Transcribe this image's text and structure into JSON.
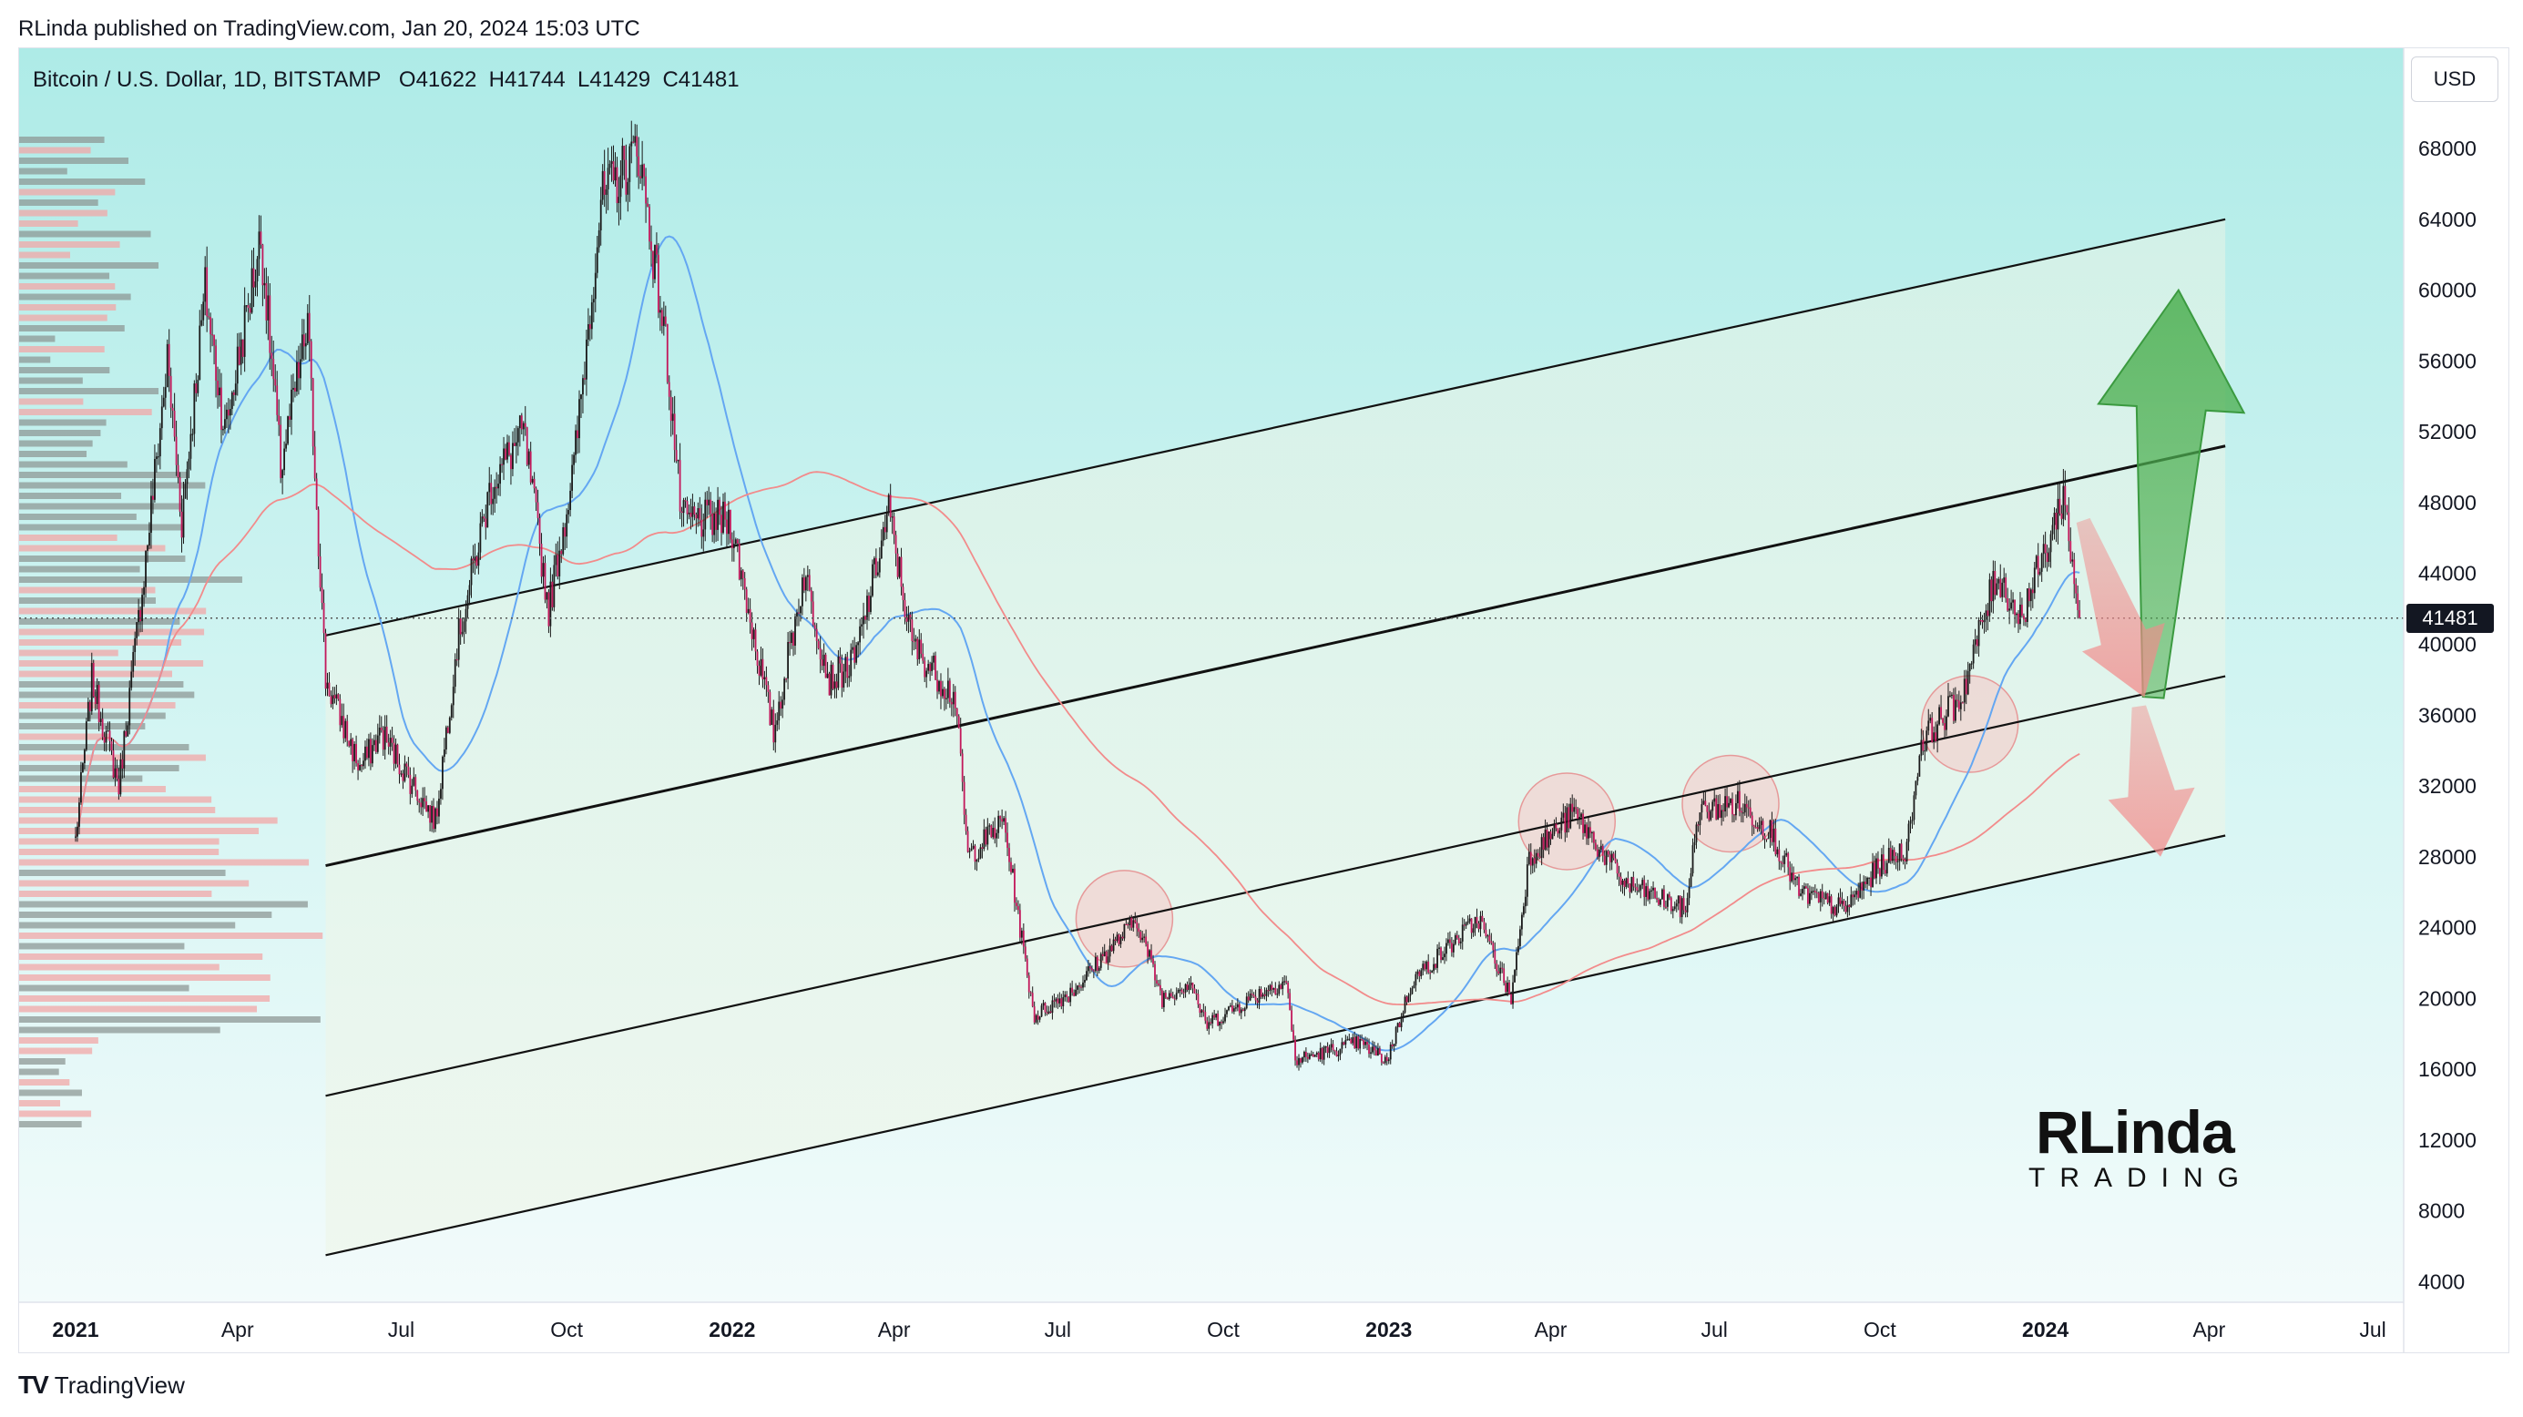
{
  "caption": "RLinda published on TradingView.com, Jan 20, 2024 15:03 UTC",
  "symbol": {
    "name": "Bitcoin / U.S. Dollar, 1D, BITSTAMP",
    "ohlc": "O41622  H41744  L41429  C41481"
  },
  "currency_button": "USD",
  "last_price_label": "41481",
  "footer": {
    "brand": "TradingView",
    "logo": "TV"
  },
  "watermark": {
    "main": "RLinda",
    "sub": "TRADING"
  },
  "colors": {
    "bull": "#e8e0e8",
    "bear": "#c2185b",
    "ma_fast": "#64a7f2",
    "ma_slow": "#f28b8b",
    "bg_top": "#b2ede9",
    "arrow_up": "#4caf50",
    "arrow_down": "#f4a0a0"
  },
  "chart_data": {
    "type": "candlestick",
    "y_ticks": [
      68000,
      64000,
      60000,
      56000,
      52000,
      48000,
      44000,
      40000,
      36000,
      32000,
      28000,
      24000,
      20000,
      16000,
      12000,
      8000,
      4000
    ],
    "x_ticks": [
      "2021",
      "Apr",
      "Jul",
      "Oct",
      "2022",
      "Apr",
      "Jul",
      "Oct",
      "2023",
      "Apr",
      "Jul",
      "Oct",
      "2024",
      "Apr",
      "Jul"
    ],
    "ylim": [
      2000,
      71000
    ],
    "last_price": 41481,
    "price_path": [
      [
        "2021-01-01",
        29000
      ],
      [
        "2021-01-10",
        38000
      ],
      [
        "2021-01-25",
        32000
      ],
      [
        "2021-02-08",
        44000
      ],
      [
        "2021-02-21",
        56000
      ],
      [
        "2021-03-01",
        47000
      ],
      [
        "2021-03-14",
        60000
      ],
      [
        "2021-03-25",
        52000
      ],
      [
        "2021-04-14",
        63000
      ],
      [
        "2021-04-25",
        50000
      ],
      [
        "2021-05-10",
        58000
      ],
      [
        "2021-05-20",
        38000
      ],
      [
        "2021-06-08",
        33000
      ],
      [
        "2021-06-20",
        35000
      ],
      [
        "2021-07-20",
        30000
      ],
      [
        "2021-08-01",
        40000
      ],
      [
        "2021-08-20",
        49000
      ],
      [
        "2021-09-07",
        52000
      ],
      [
        "2021-09-21",
        42000
      ],
      [
        "2021-10-05",
        50000
      ],
      [
        "2021-10-20",
        65000
      ],
      [
        "2021-11-10",
        68000
      ],
      [
        "2021-11-25",
        57000
      ],
      [
        "2021-12-04",
        47000
      ],
      [
        "2021-12-31",
        47000
      ],
      [
        "2022-01-10",
        42000
      ],
      [
        "2022-01-24",
        35000
      ],
      [
        "2022-02-10",
        44000
      ],
      [
        "2022-02-24",
        38000
      ],
      [
        "2022-03-10",
        39000
      ],
      [
        "2022-03-29",
        47500
      ],
      [
        "2022-04-11",
        40000
      ],
      [
        "2022-05-05",
        37000
      ],
      [
        "2022-05-12",
        28000
      ],
      [
        "2022-06-01",
        30000
      ],
      [
        "2022-06-13",
        22000
      ],
      [
        "2022-06-18",
        19000
      ],
      [
        "2022-07-10",
        20500
      ],
      [
        "2022-08-14",
        24500
      ],
      [
        "2022-08-28",
        20000
      ],
      [
        "2022-09-13",
        21000
      ],
      [
        "2022-09-21",
        18500
      ],
      [
        "2022-10-25",
        20500
      ],
      [
        "2022-11-05",
        21000
      ],
      [
        "2022-11-10",
        16500
      ],
      [
        "2022-12-15",
        17500
      ],
      [
        "2022-12-31",
        16500
      ],
      [
        "2023-01-14",
        21000
      ],
      [
        "2023-02-20",
        24500
      ],
      [
        "2023-03-10",
        20000
      ],
      [
        "2023-03-20",
        28000
      ],
      [
        "2023-04-14",
        30500
      ],
      [
        "2023-05-12",
        26500
      ],
      [
        "2023-06-15",
        25000
      ],
      [
        "2023-06-22",
        30500
      ],
      [
        "2023-07-14",
        31000
      ],
      [
        "2023-08-01",
        29500
      ],
      [
        "2023-08-17",
        26000
      ],
      [
        "2023-09-11",
        25000
      ],
      [
        "2023-10-01",
        27500
      ],
      [
        "2023-10-16",
        28500
      ],
      [
        "2023-10-24",
        34500
      ],
      [
        "2023-11-15",
        37000
      ],
      [
        "2023-12-05",
        44000
      ],
      [
        "2023-12-18",
        41500
      ],
      [
        "2024-01-02",
        45500
      ],
      [
        "2024-01-11",
        48500
      ],
      [
        "2024-01-20",
        41481
      ]
    ],
    "channel_lines": [
      {
        "from": [
          "2021-05-20",
          40500
        ],
        "to": [
          "2024-04-10",
          64000
        ]
      },
      {
        "from": [
          "2021-05-20",
          27500
        ],
        "to": [
          "2024-04-10",
          51200
        ]
      },
      {
        "from": [
          "2021-05-20",
          14500
        ],
        "to": [
          "2024-04-10",
          38200
        ]
      },
      {
        "from": [
          "2021-05-20",
          5500
        ],
        "to": [
          "2024-04-10",
          29200
        ]
      }
    ],
    "circles": [
      {
        "date": "2022-08-07",
        "price": 24500
      },
      {
        "date": "2023-04-10",
        "price": 30000
      },
      {
        "date": "2023-07-10",
        "price": 31000
      },
      {
        "date": "2023-11-20",
        "price": 35500
      }
    ],
    "arrows": [
      {
        "direction": "up",
        "from": [
          "2024-03-01",
          37000
        ],
        "to": [
          "2024-03-15",
          60000
        ]
      },
      {
        "direction": "down",
        "from": [
          "2024-01-22",
          47000
        ],
        "to": [
          "2024-02-25",
          37000
        ]
      },
      {
        "direction": "down",
        "from": [
          "2024-02-22",
          36500
        ],
        "to": [
          "2024-03-05",
          28000
        ]
      }
    ]
  }
}
